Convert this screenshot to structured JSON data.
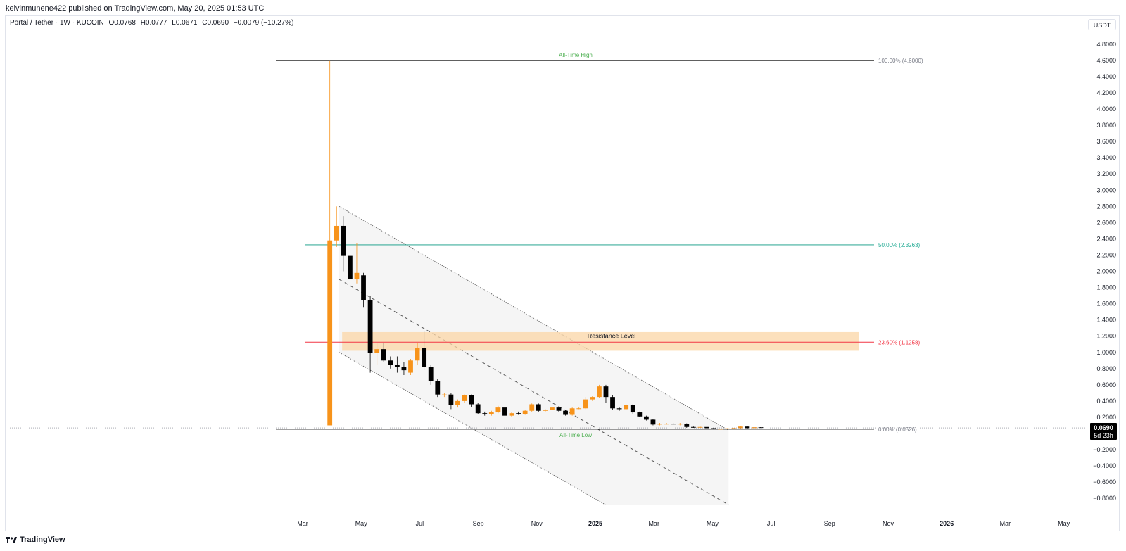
{
  "header": {
    "published_line": "kelvinmunene422 published on TradingView.com, May 20, 2025 01:53 UTC",
    "symbol": "Portal / Tether · 1W · KUCOIN",
    "ohlc": {
      "open": "O0.0768",
      "high": "H0.0777",
      "low": "L0.0671",
      "close": "C0.0690",
      "change": "−0.0079 (−10.27%)"
    },
    "currency_button": "USDT"
  },
  "footer": {
    "brand": "TradingView"
  },
  "colors": {
    "up": "#f7931a",
    "down": "#000000",
    "fib_100": "#000000",
    "fib_50": "#089981",
    "fib_236": "#f23645",
    "fib_0": "#000000",
    "zone": "#fbd6a6",
    "channel_fill": "#f5f5f5"
  },
  "chart_data": {
    "type": "candlestick",
    "interval": "1W",
    "ylim": [
      -0.8,
      5.0
    ],
    "y_ticks": [
      "4.8000",
      "4.6000",
      "4.4000",
      "4.2000",
      "4.0000",
      "3.8000",
      "3.6000",
      "3.4000",
      "3.2000",
      "3.0000",
      "2.8000",
      "2.6000",
      "2.4000",
      "2.2000",
      "2.0000",
      "1.8000",
      "1.6000",
      "1.4000",
      "1.2000",
      "1.0000",
      "0.8000",
      "0.6000",
      "0.4000",
      "0.2000",
      "0.0000",
      "−0.2000",
      "−0.4000",
      "−0.6000",
      "−0.8000"
    ],
    "x_ticks": [
      "Mar",
      "May",
      "Jul",
      "Sep",
      "Nov",
      "2025",
      "Mar",
      "May",
      "Jul",
      "Sep",
      "Nov",
      "2026",
      "Mar",
      "May"
    ],
    "x_tick_months": [
      2,
      4,
      6,
      8,
      10,
      12,
      14,
      16,
      18,
      20,
      22,
      24,
      26,
      28
    ],
    "last_price": {
      "value": 0.069,
      "label": "0.0690",
      "countdown": "5d 23h"
    },
    "fib_levels": [
      {
        "label": "100.00% (4.6000)",
        "value": 4.6,
        "colorKey": "fib_100"
      },
      {
        "label": "50.00% (2.3263)",
        "value": 2.3263,
        "colorKey": "fib_50"
      },
      {
        "label": "23.60% (1.1258)",
        "value": 1.1258,
        "colorKey": "fib_236"
      },
      {
        "label": "0.00% (0.0526)",
        "value": 0.0526,
        "colorKey": "fib_0"
      }
    ],
    "annotations": {
      "ath": "All-Time High",
      "atl": "All-Time Low",
      "resistance": "Resistance Level"
    },
    "resistance_zone": {
      "low": 1.02,
      "high": 1.25,
      "start_month": 3.35,
      "end_month": 21.0
    },
    "channel": {
      "upper": [
        [
          3.25,
          2.8
        ],
        [
          16.55,
          0.04
        ]
      ],
      "lower": [
        [
          3.25,
          1.0
        ],
        [
          12.35,
          -0.88
        ]
      ],
      "mid": [
        [
          3.25,
          1.9
        ],
        [
          16.55,
          -0.88
        ]
      ]
    },
    "candles": [
      {
        "t": 2.93,
        "o": 0.1,
        "h": 4.6,
        "l": 0.1,
        "c": 2.38
      },
      {
        "t": 3.16,
        "o": 2.38,
        "h": 2.8,
        "l": 2.3,
        "c": 2.56
      },
      {
        "t": 3.39,
        "o": 2.56,
        "h": 2.68,
        "l": 2.0,
        "c": 2.19
      },
      {
        "t": 3.62,
        "o": 2.19,
        "h": 2.25,
        "l": 1.65,
        "c": 1.9
      },
      {
        "t": 3.85,
        "o": 1.9,
        "h": 2.35,
        "l": 1.85,
        "c": 1.98
      },
      {
        "t": 4.08,
        "o": 1.95,
        "h": 1.98,
        "l": 1.56,
        "c": 1.64
      },
      {
        "t": 4.31,
        "o": 1.64,
        "h": 1.7,
        "l": 0.75,
        "c": 0.99
      },
      {
        "t": 4.54,
        "o": 0.99,
        "h": 1.12,
        "l": 0.85,
        "c": 1.04
      },
      {
        "t": 4.77,
        "o": 1.04,
        "h": 1.12,
        "l": 0.88,
        "c": 0.9
      },
      {
        "t": 5.0,
        "o": 0.9,
        "h": 0.95,
        "l": 0.8,
        "c": 0.85
      },
      {
        "t": 5.23,
        "o": 0.85,
        "h": 0.95,
        "l": 0.75,
        "c": 0.82
      },
      {
        "t": 5.46,
        "o": 0.82,
        "h": 0.88,
        "l": 0.72,
        "c": 0.78
      },
      {
        "t": 5.69,
        "o": 0.75,
        "h": 0.92,
        "l": 0.72,
        "c": 0.9
      },
      {
        "t": 5.92,
        "o": 0.9,
        "h": 1.12,
        "l": 0.85,
        "c": 1.05
      },
      {
        "t": 6.15,
        "o": 1.05,
        "h": 1.26,
        "l": 0.78,
        "c": 0.82
      },
      {
        "t": 6.38,
        "o": 0.82,
        "h": 0.85,
        "l": 0.6,
        "c": 0.65
      },
      {
        "t": 6.61,
        "o": 0.65,
        "h": 0.67,
        "l": 0.45,
        "c": 0.48
      },
      {
        "t": 6.84,
        "o": 0.47,
        "h": 0.5,
        "l": 0.45,
        "c": 0.48
      },
      {
        "t": 7.07,
        "o": 0.48,
        "h": 0.5,
        "l": 0.3,
        "c": 0.35
      },
      {
        "t": 7.3,
        "o": 0.35,
        "h": 0.42,
        "l": 0.32,
        "c": 0.4
      },
      {
        "t": 7.53,
        "o": 0.4,
        "h": 0.48,
        "l": 0.38,
        "c": 0.47
      },
      {
        "t": 7.76,
        "o": 0.47,
        "h": 0.48,
        "l": 0.33,
        "c": 0.36
      },
      {
        "t": 7.99,
        "o": 0.36,
        "h": 0.38,
        "l": 0.24,
        "c": 0.25
      },
      {
        "t": 8.22,
        "o": 0.25,
        "h": 0.27,
        "l": 0.22,
        "c": 0.24
      },
      {
        "t": 8.45,
        "o": 0.24,
        "h": 0.28,
        "l": 0.22,
        "c": 0.26
      },
      {
        "t": 8.68,
        "o": 0.26,
        "h": 0.34,
        "l": 0.25,
        "c": 0.32
      },
      {
        "t": 8.91,
        "o": 0.32,
        "h": 0.33,
        "l": 0.2,
        "c": 0.22
      },
      {
        "t": 9.14,
        "o": 0.22,
        "h": 0.26,
        "l": 0.2,
        "c": 0.25
      },
      {
        "t": 9.37,
        "o": 0.25,
        "h": 0.27,
        "l": 0.23,
        "c": 0.24
      },
      {
        "t": 9.6,
        "o": 0.24,
        "h": 0.29,
        "l": 0.23,
        "c": 0.28
      },
      {
        "t": 9.83,
        "o": 0.28,
        "h": 0.37,
        "l": 0.27,
        "c": 0.36
      },
      {
        "t": 10.06,
        "o": 0.36,
        "h": 0.37,
        "l": 0.27,
        "c": 0.28
      },
      {
        "t": 10.29,
        "o": 0.28,
        "h": 0.3,
        "l": 0.27,
        "c": 0.29
      },
      {
        "t": 10.52,
        "o": 0.29,
        "h": 0.33,
        "l": 0.27,
        "c": 0.32
      },
      {
        "t": 10.75,
        "o": 0.32,
        "h": 0.33,
        "l": 0.26,
        "c": 0.28
      },
      {
        "t": 10.98,
        "o": 0.28,
        "h": 0.29,
        "l": 0.22,
        "c": 0.23
      },
      {
        "t": 11.21,
        "o": 0.23,
        "h": 0.32,
        "l": 0.22,
        "c": 0.31
      },
      {
        "t": 11.44,
        "o": 0.31,
        "h": 0.32,
        "l": 0.3,
        "c": 0.31
      },
      {
        "t": 11.67,
        "o": 0.31,
        "h": 0.45,
        "l": 0.3,
        "c": 0.42
      },
      {
        "t": 11.9,
        "o": 0.42,
        "h": 0.46,
        "l": 0.4,
        "c": 0.45
      },
      {
        "t": 12.13,
        "o": 0.45,
        "h": 0.6,
        "l": 0.44,
        "c": 0.58
      },
      {
        "t": 12.36,
        "o": 0.58,
        "h": 0.6,
        "l": 0.38,
        "c": 0.45
      },
      {
        "t": 12.59,
        "o": 0.45,
        "h": 0.47,
        "l": 0.29,
        "c": 0.31
      },
      {
        "t": 12.82,
        "o": 0.31,
        "h": 0.32,
        "l": 0.28,
        "c": 0.3
      },
      {
        "t": 13.05,
        "o": 0.3,
        "h": 0.36,
        "l": 0.29,
        "c": 0.35
      },
      {
        "t": 13.28,
        "o": 0.35,
        "h": 0.36,
        "l": 0.24,
        "c": 0.26
      },
      {
        "t": 13.51,
        "o": 0.26,
        "h": 0.27,
        "l": 0.2,
        "c": 0.21
      },
      {
        "t": 13.74,
        "o": 0.21,
        "h": 0.22,
        "l": 0.16,
        "c": 0.17
      },
      {
        "t": 13.97,
        "o": 0.17,
        "h": 0.18,
        "l": 0.1,
        "c": 0.11
      },
      {
        "t": 14.2,
        "o": 0.11,
        "h": 0.13,
        "l": 0.1,
        "c": 0.12
      },
      {
        "t": 14.43,
        "o": 0.12,
        "h": 0.13,
        "l": 0.11,
        "c": 0.12
      },
      {
        "t": 14.66,
        "o": 0.12,
        "h": 0.13,
        "l": 0.11,
        "c": 0.115
      },
      {
        "t": 14.89,
        "o": 0.115,
        "h": 0.13,
        "l": 0.1,
        "c": 0.12
      },
      {
        "t": 15.12,
        "o": 0.12,
        "h": 0.125,
        "l": 0.07,
        "c": 0.08
      },
      {
        "t": 15.35,
        "o": 0.08,
        "h": 0.085,
        "l": 0.07,
        "c": 0.075
      },
      {
        "t": 15.58,
        "o": 0.075,
        "h": 0.085,
        "l": 0.07,
        "c": 0.08
      },
      {
        "t": 15.81,
        "o": 0.08,
        "h": 0.082,
        "l": 0.06,
        "c": 0.065
      },
      {
        "t": 16.04,
        "o": 0.065,
        "h": 0.07,
        "l": 0.05,
        "c": 0.055
      },
      {
        "t": 16.27,
        "o": 0.055,
        "h": 0.06,
        "l": 0.053,
        "c": 0.058
      },
      {
        "t": 16.5,
        "o": 0.058,
        "h": 0.066,
        "l": 0.055,
        "c": 0.062
      },
      {
        "t": 16.73,
        "o": 0.062,
        "h": 0.068,
        "l": 0.058,
        "c": 0.065
      },
      {
        "t": 16.96,
        "o": 0.065,
        "h": 0.09,
        "l": 0.06,
        "c": 0.085
      },
      {
        "t": 17.19,
        "o": 0.085,
        "h": 0.09,
        "l": 0.06,
        "c": 0.065
      },
      {
        "t": 17.42,
        "o": 0.065,
        "h": 0.1,
        "l": 0.06,
        "c": 0.0768
      },
      {
        "t": 17.65,
        "o": 0.0768,
        "h": 0.0777,
        "l": 0.0671,
        "c": 0.069
      }
    ]
  }
}
